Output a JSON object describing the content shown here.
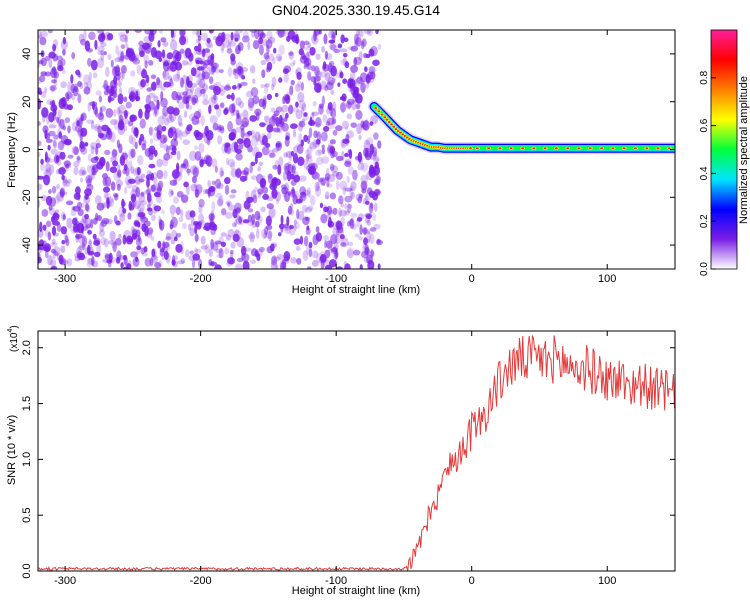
{
  "title": "GN04.2025.330.19.45.G14",
  "chart_data": [
    {
      "type": "heatmap",
      "xlabel": "Height of straight line (km)",
      "ylabel": "Frequency (Hz)",
      "xlim": [
        -320,
        150
      ],
      "ylim": [
        -50,
        50
      ],
      "xticks": [
        -300,
        -200,
        -100,
        0,
        100
      ],
      "yticks": [
        -40,
        -20,
        0,
        20,
        40
      ],
      "noise_region": {
        "x": [
          -320,
          -68
        ],
        "y": [
          -50,
          50
        ],
        "color": "#7a1fe6"
      },
      "signal_track": {
        "x": [
          -72,
          -65,
          -60,
          -55,
          -50,
          -45,
          -40,
          -35,
          -30,
          -25,
          -20,
          -15,
          -10,
          -5,
          0,
          25,
          50,
          75,
          100,
          125,
          150
        ],
        "y": [
          18,
          14,
          11,
          8,
          6,
          4,
          3,
          2,
          1,
          1,
          0.5,
          0.5,
          0.5,
          0.5,
          0.5,
          0.5,
          0.5,
          0.5,
          0.5,
          0.5,
          0.5
        ]
      },
      "colorbar": {
        "label": "Normalized spectral amplitude",
        "range": [
          0,
          1
        ],
        "ticks": [
          "0.0",
          "0.2",
          "0.4",
          "0.6",
          "0.8"
        ],
        "tick_values": [
          0,
          0.2,
          0.4,
          0.6,
          0.8
        ],
        "colors": [
          "#ffffff",
          "#7a1fe6",
          "#0000ff",
          "#00e5ff",
          "#00ff3c",
          "#ffff00",
          "#ff7f00",
          "#ff0000",
          "#ff1f9a"
        ]
      },
      "grid": false
    },
    {
      "type": "line",
      "xlabel": "Height of straight line (km)",
      "ylabel": "SNR (10 * v/v)",
      "scale_label": "(x10",
      "scale_exponent": "4",
      "scale_suffix": ")",
      "xlim": [
        -320,
        150
      ],
      "ylim": [
        0,
        2.15
      ],
      "xticks": [
        -300,
        -200,
        -100,
        0,
        100
      ],
      "yticks": [
        "0.0",
        "0.5",
        "1.0",
        "1.5",
        "2.0"
      ],
      "ytick_values": [
        0,
        0.5,
        1.0,
        1.5,
        2.0
      ],
      "series": [
        {
          "color": "#e53a3a",
          "x": [
            -320,
            -50,
            -45,
            -40,
            -35,
            -30,
            -25,
            -20,
            -15,
            -10,
            -5,
            0,
            5,
            10,
            15,
            20,
            25,
            30,
            35,
            40,
            45,
            50,
            55,
            60,
            65,
            70,
            75,
            80,
            85,
            90,
            95,
            100,
            105,
            110,
            115,
            120,
            125,
            130,
            135,
            140,
            145,
            150
          ],
          "values": [
            0.02,
            0.02,
            0.08,
            0.2,
            0.35,
            0.55,
            0.72,
            0.85,
            0.95,
            1.05,
            1.15,
            1.25,
            1.32,
            1.42,
            1.55,
            1.68,
            1.78,
            1.85,
            1.88,
            1.9,
            1.9,
            1.9,
            1.88,
            1.9,
            1.88,
            1.85,
            1.82,
            1.8,
            1.82,
            1.78,
            1.75,
            1.72,
            1.7,
            1.72,
            1.68,
            1.66,
            1.68,
            1.65,
            1.62,
            1.63,
            1.6,
            1.56
          ]
        }
      ],
      "grid": false
    }
  ]
}
